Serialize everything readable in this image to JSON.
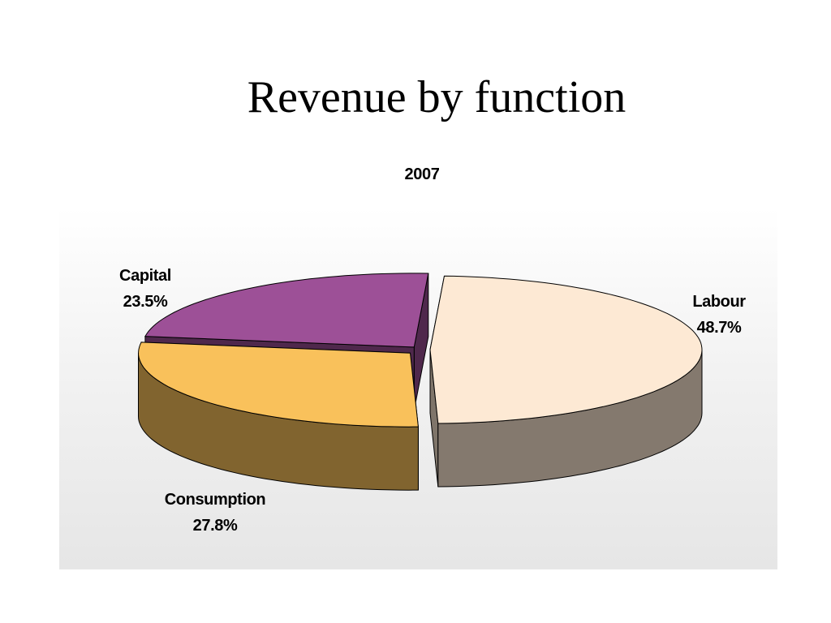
{
  "slide": {
    "title": "Revenue by function"
  },
  "chart_data": {
    "type": "pie",
    "title": "2007",
    "three_d": true,
    "exploded": true,
    "labels": [
      "Labour",
      "Consumption",
      "Capital"
    ],
    "values": [
      48.7,
      27.8,
      23.5
    ],
    "value_labels": [
      "48.7%",
      "27.8%",
      "23.5%"
    ],
    "colors": {
      "Labour": "#fde9d4",
      "Consumption": "#f9c15b",
      "Capital": "#9d5097"
    },
    "background": "#ebebeb"
  }
}
